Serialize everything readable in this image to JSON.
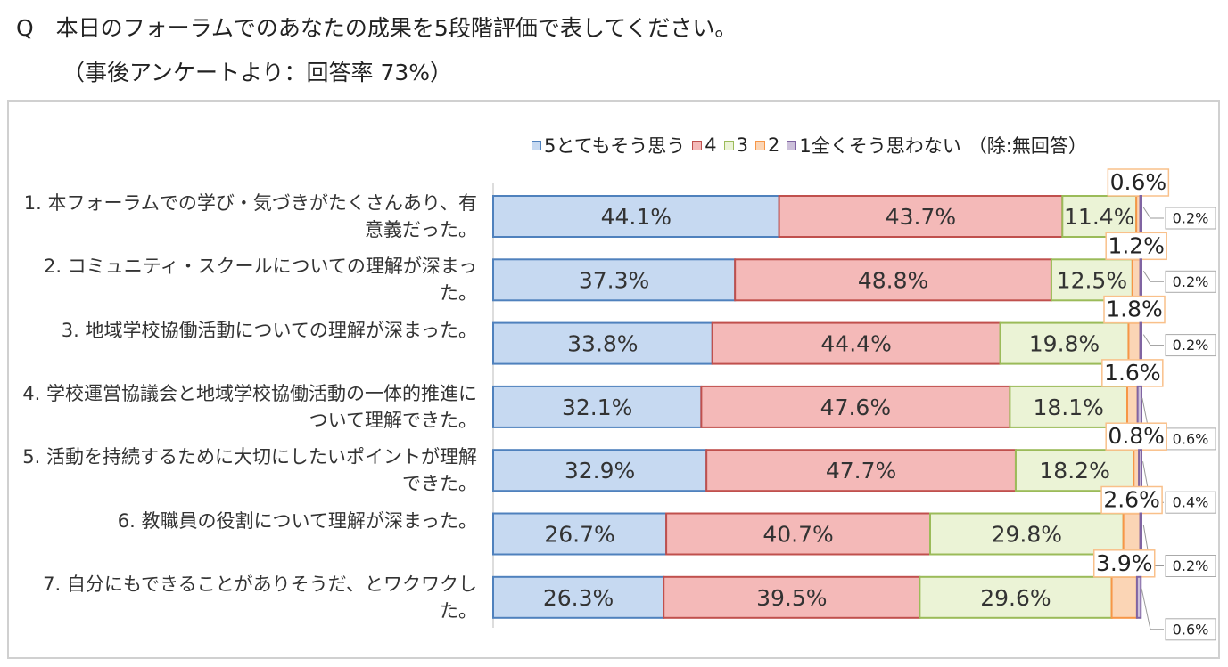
{
  "chart_data": {
    "type": "stacked_barh",
    "title": "Q　本日のフォーラムでのあなたの成果を5段階評価で表してください。",
    "subtitle": "（事後アンケートより：回答率 73%）",
    "legend_note": "（除:無回答）",
    "xlim": [
      0,
      100
    ],
    "categories": [
      "1. 本フォーラムでの学び・気づきがたくさんあり、有意義だった。",
      "2. コミュニティ・スクールについての理解が深まった。",
      "3. 地域学校協働活動についての理解が深まった。",
      "4. 学校運営協議会と地域学校協働活動の一体的推進について理解できた。",
      "5. 活動を持続するために大切にしたいポイントが理解できた。",
      "6. 教職員の役割について理解が深まった。",
      "7. 自分にもできることがありそうだ、とワクワクした。"
    ],
    "series": [
      {
        "name": "5とてもそう思う",
        "color": "#c6d9f1",
        "border": "#4f81bd",
        "values": [
          44.1,
          37.3,
          33.8,
          32.1,
          32.9,
          26.7,
          26.3
        ],
        "value_labels": [
          "44.1%",
          "37.3%",
          "33.8%",
          "32.1%",
          "32.9%",
          "26.7%",
          "26.3%"
        ]
      },
      {
        "name": "4",
        "color": "#f4b9b8",
        "border": "#c0504d",
        "values": [
          43.7,
          48.8,
          44.4,
          47.6,
          47.7,
          40.7,
          39.5
        ],
        "value_labels": [
          "43.7%",
          "48.8%",
          "44.4%",
          "47.6%",
          "47.7%",
          "40.7%",
          "39.5%"
        ]
      },
      {
        "name": "3",
        "color": "#ebf3d6",
        "border": "#9bbb59",
        "values": [
          11.4,
          12.5,
          19.8,
          18.1,
          18.2,
          29.8,
          29.6
        ],
        "value_labels": [
          "11.4%",
          "12.5%",
          "19.8%",
          "18.1%",
          "18.2%",
          "29.8%",
          "29.6%"
        ]
      },
      {
        "name": "2",
        "color": "#fbd5b5",
        "border": "#f79646",
        "values": [
          0.6,
          1.2,
          1.8,
          1.6,
          0.8,
          2.6,
          3.9
        ],
        "value_labels": [
          "0.6%",
          "1.2%",
          "1.8%",
          "1.6%",
          "0.8%",
          "2.6%",
          "3.9%"
        ]
      },
      {
        "name": "1全くそう思わない",
        "color": "#ccc0da",
        "border": "#8064a2",
        "values": [
          0.2,
          0.2,
          0.2,
          0.6,
          0.4,
          0.2,
          0.6
        ],
        "value_labels": [
          "0.2%",
          "0.2%",
          "0.2%",
          "0.6%",
          "0.4%",
          "0.2%",
          "0.6%"
        ]
      }
    ]
  }
}
